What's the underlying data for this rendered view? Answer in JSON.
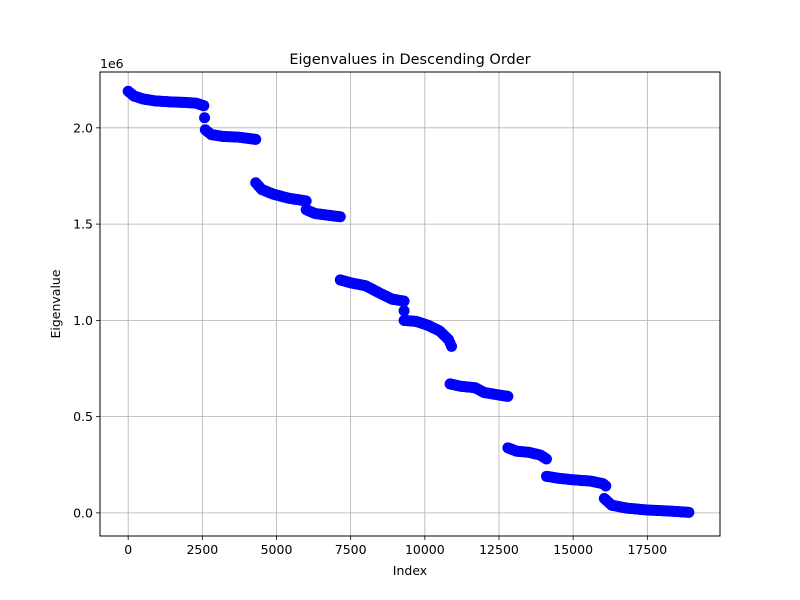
{
  "chart_data": {
    "type": "scatter",
    "title": "Eigenvalues in Descending Order",
    "xlabel": "Index",
    "ylabel": "Eigenvalue",
    "y_offset_label": "1e6",
    "xlim": [
      -950,
      19950
    ],
    "ylim": [
      -120000,
      2290000
    ],
    "x_ticks": [
      0,
      2500,
      5000,
      7500,
      10000,
      12500,
      15000,
      17500
    ],
    "x_tick_labels": [
      "0",
      "2500",
      "5000",
      "7500",
      "10000",
      "12500",
      "15000",
      "17500"
    ],
    "y_ticks": [
      0,
      500000,
      1000000,
      1500000,
      2000000
    ],
    "y_tick_labels": [
      "0.0",
      "0.5",
      "1.0",
      "1.5",
      "2.0"
    ],
    "grid": true,
    "marker_color": "#0000ff",
    "series": [
      {
        "points": [
          [
            0,
            2190000
          ],
          [
            200,
            2165000
          ],
          [
            500,
            2150000
          ],
          [
            900,
            2140000
          ],
          [
            1400,
            2135000
          ],
          [
            1900,
            2132000
          ],
          [
            2300,
            2128000
          ],
          [
            2550,
            2115000
          ],
          [
            2600,
            1990000
          ],
          [
            2800,
            1965000
          ],
          [
            3200,
            1955000
          ],
          [
            3700,
            1952000
          ],
          [
            4300,
            1940000
          ],
          [
            4300,
            1715000
          ],
          [
            4500,
            1680000
          ],
          [
            4900,
            1655000
          ],
          [
            5400,
            1635000
          ],
          [
            5800,
            1625000
          ],
          [
            6000,
            1620000
          ],
          [
            6000,
            1575000
          ],
          [
            6300,
            1555000
          ],
          [
            6800,
            1545000
          ],
          [
            7150,
            1538000
          ],
          [
            7150,
            1210000
          ],
          [
            7500,
            1195000
          ],
          [
            8000,
            1180000
          ],
          [
            8500,
            1140000
          ],
          [
            8900,
            1110000
          ],
          [
            9300,
            1100000
          ],
          [
            9300,
            1050000
          ],
          [
            9300,
            1000000
          ],
          [
            9700,
            995000
          ],
          [
            10100,
            975000
          ],
          [
            10500,
            945000
          ],
          [
            10800,
            900000
          ],
          [
            10900,
            865000
          ],
          [
            10850,
            670000
          ],
          [
            11200,
            658000
          ],
          [
            11700,
            650000
          ],
          [
            12000,
            625000
          ],
          [
            12400,
            615000
          ],
          [
            12800,
            605000
          ],
          [
            12800,
            338000
          ],
          [
            13100,
            320000
          ],
          [
            13500,
            315000
          ],
          [
            13900,
            300000
          ],
          [
            14100,
            280000
          ],
          [
            14100,
            190000
          ],
          [
            14500,
            180000
          ],
          [
            15000,
            172000
          ],
          [
            15600,
            165000
          ],
          [
            16000,
            152000
          ],
          [
            16100,
            140000
          ],
          [
            16050,
            75000
          ],
          [
            16300,
            40000
          ],
          [
            16800,
            25000
          ],
          [
            17500,
            15000
          ],
          [
            18200,
            10000
          ],
          [
            18900,
            3000
          ]
        ]
      }
    ]
  }
}
